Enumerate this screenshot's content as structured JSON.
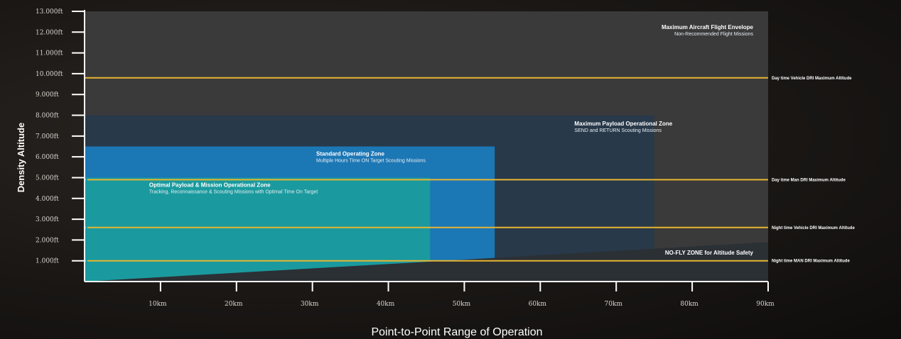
{
  "chart_data": {
    "type": "area",
    "title": "",
    "xlabel": "Point-to-Point Range of Operation",
    "ylabel": "Density Altitude",
    "xlim": [
      0,
      90
    ],
    "ylim": [
      0,
      13000
    ],
    "x_ticks": [
      {
        "value": 10,
        "label": "10km"
      },
      {
        "value": 20,
        "label": "20km"
      },
      {
        "value": 30,
        "label": "30km"
      },
      {
        "value": 40,
        "label": "40km"
      },
      {
        "value": 50,
        "label": "50km"
      },
      {
        "value": 60,
        "label": "60km"
      },
      {
        "value": 70,
        "label": "70km"
      },
      {
        "value": 80,
        "label": "80km"
      },
      {
        "value": 90,
        "label": "90km"
      }
    ],
    "y_ticks": [
      {
        "value": 1000,
        "label": "1.000ft"
      },
      {
        "value": 2000,
        "label": "2.000ft"
      },
      {
        "value": 3000,
        "label": "3.000ft"
      },
      {
        "value": 4000,
        "label": "4.000ft"
      },
      {
        "value": 5000,
        "label": "5.000ft"
      },
      {
        "value": 6000,
        "label": "6.000ft"
      },
      {
        "value": 7000,
        "label": "7.000ft"
      },
      {
        "value": 8000,
        "label": "8.000ft"
      },
      {
        "value": 9000,
        "label": "9.000ft"
      },
      {
        "value": 10000,
        "label": "10.000ft"
      },
      {
        "value": 11000,
        "label": "11.000ft"
      },
      {
        "value": 12000,
        "label": "12.000ft"
      },
      {
        "value": 13000,
        "label": "13.000ft"
      }
    ],
    "zones": [
      {
        "id": "max-envelope",
        "name": "Maximum Aircraft Flight Envelope",
        "subtitle": "Non-Recommended Flight Missions",
        "x_max": 90,
        "alt_max": 13000,
        "color": "#3a3a3a"
      },
      {
        "id": "max-payload",
        "name": "Maximum Payload Operational Zone",
        "subtitle": "SEND and RETURN Scouting Missions",
        "x_max": 75,
        "alt_max": 8000,
        "color": "#28394a"
      },
      {
        "id": "standard",
        "name": "Standard Operating Zone",
        "subtitle": "Multiple Hours Time ON Target Scouting Missions",
        "x_max": 54,
        "alt_max": 6500,
        "color": "#1c77b5"
      },
      {
        "id": "optimal",
        "name": "Optimal Payload & Mission Operational Zone",
        "subtitle": "Tracking, Reconnaissance & Scouting Missions with Optimal Time On Target",
        "x_max": 45.5,
        "alt_max": 5000,
        "color": "#1a9a9e"
      }
    ],
    "no_fly_zone": {
      "label": "NO-FLY ZONE for Altitude Safety",
      "x": [
        0,
        90
      ],
      "alt": [
        0,
        1900
      ],
      "color": "#2b3035"
    },
    "limit_lines": [
      {
        "label": "Day time Vehicle DRI Maximum Altitude",
        "altitude": 9800
      },
      {
        "label": "Day time Man DRI Maximum Altitude",
        "altitude": 4900
      },
      {
        "label": "Night time Vehicle DRI Maximum Altitude",
        "altitude": 2600
      },
      {
        "label": "Night time MAN DRI Maximum Altitude",
        "altitude": 1000
      }
    ],
    "colors": {
      "limit_line": "#e8b530",
      "axis": "#ffffff",
      "accent_line": "#1a9a9e"
    },
    "grid": false,
    "legend": "none"
  }
}
